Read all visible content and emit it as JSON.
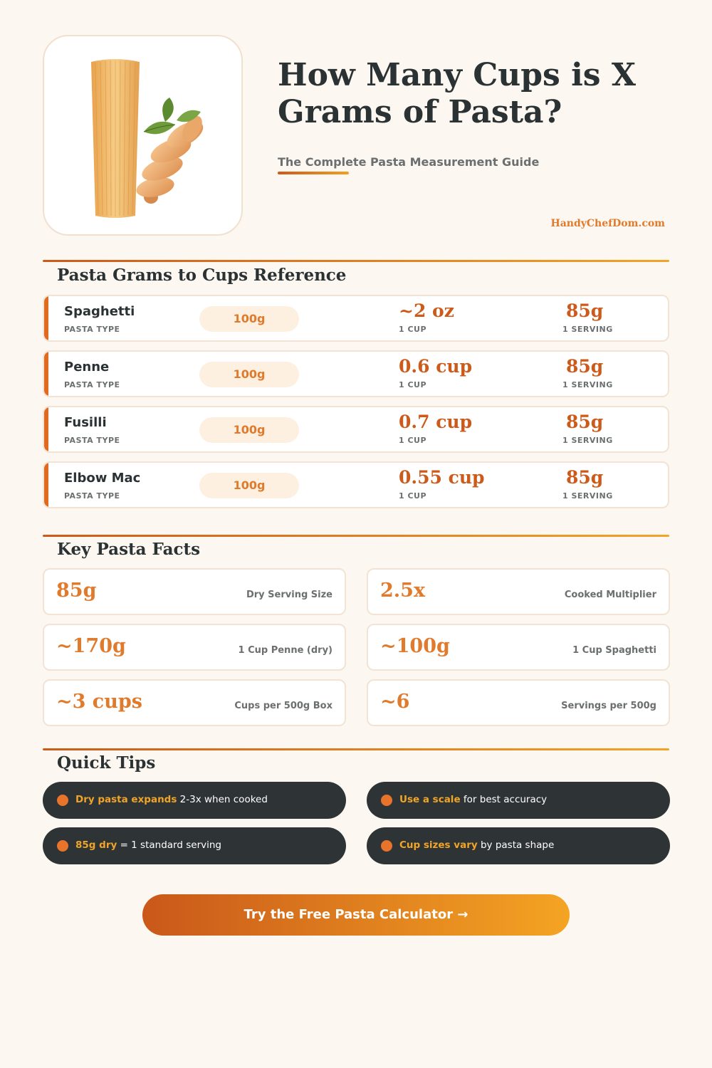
{
  "header": {
    "title": "How Many Cups is X Grams of Pasta?",
    "subtitle": "The Complete Pasta Measurement Guide",
    "site": "HandyChefDom.com"
  },
  "hero": {
    "illustration": "spaghetti-bundle-and-fusilli-with-basil"
  },
  "reference": {
    "title": "Pasta Grams to Cups Reference",
    "rows": [
      {
        "name": "Spaghetti",
        "type_label": "PASTA TYPE",
        "grams": "100g",
        "cups": "~2 oz",
        "cups_label": "1 CUP",
        "serving": "85g",
        "serving_label": "1 SERVING"
      },
      {
        "name": "Penne",
        "type_label": "PASTA TYPE",
        "grams": "100g",
        "cups": "0.6 cup",
        "cups_label": "1 CUP",
        "serving": "85g",
        "serving_label": "1 SERVING"
      },
      {
        "name": "Fusilli",
        "type_label": "PASTA TYPE",
        "grams": "100g",
        "cups": "0.7 cup",
        "cups_label": "1 CUP",
        "serving": "85g",
        "serving_label": "1 SERVING"
      },
      {
        "name": "Elbow Mac",
        "type_label": "PASTA TYPE",
        "grams": "100g",
        "cups": "0.55 cup",
        "cups_label": "1 CUP",
        "serving": "85g",
        "serving_label": "1 SERVING"
      }
    ]
  },
  "facts": {
    "title": "Key Pasta Facts",
    "items": [
      {
        "value": "85g",
        "label": "Dry Serving Size"
      },
      {
        "value": "2.5x",
        "label": "Cooked Multiplier"
      },
      {
        "value": "~170g",
        "label": "1 Cup Penne (dry)"
      },
      {
        "value": "~100g",
        "label": "1 Cup Spaghetti"
      },
      {
        "value": "~3 cups",
        "label": "Cups per 500g Box"
      },
      {
        "value": "~6",
        "label": "Servings per 500g"
      }
    ]
  },
  "tips": {
    "title": "Quick Tips",
    "items": [
      {
        "highlight": "Dry pasta expands",
        "text": " 2-3x when cooked"
      },
      {
        "highlight": "Use a scale",
        "text": " for best accuracy"
      },
      {
        "highlight": "85g dry",
        "text": " = 1 standard serving"
      },
      {
        "highlight": "Cup sizes vary",
        "text": " by pasta shape"
      }
    ]
  },
  "cta": {
    "label": "Try the Free Pasta Calculator →"
  },
  "colors": {
    "accent": "#e07a2c",
    "accent_dark": "#cc5a1a",
    "gold": "#f0a428",
    "dark": "#2e3436",
    "background": "#fdf7f1"
  }
}
